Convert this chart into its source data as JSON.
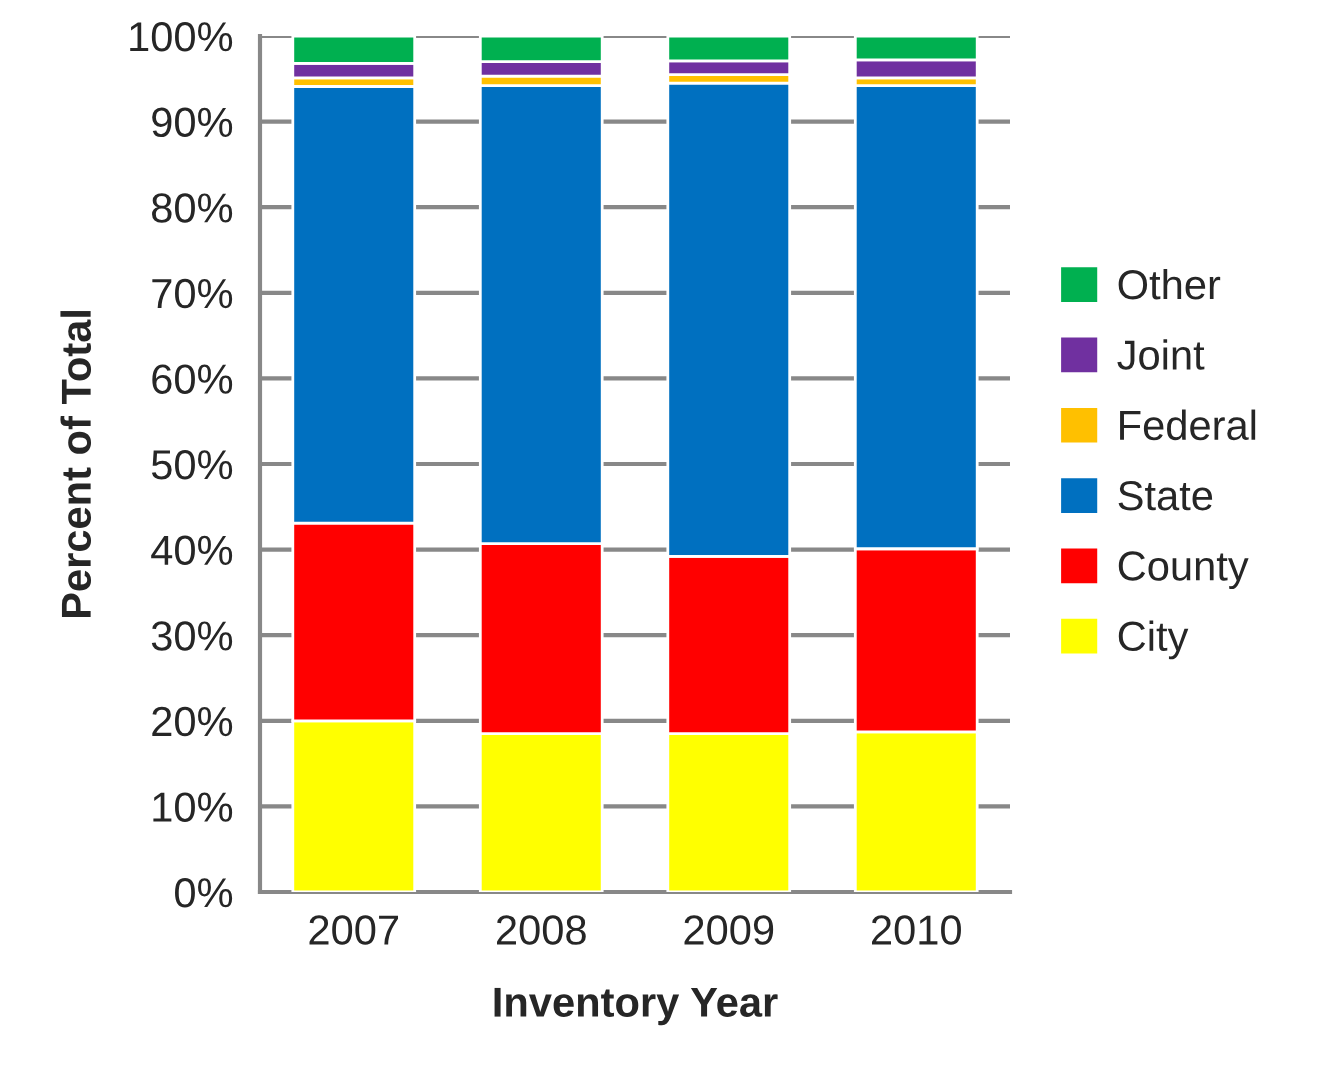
{
  "chart_data": {
    "type": "bar",
    "stacked": true,
    "xlabel": "Inventory Year",
    "ylabel": "Percent of Total",
    "categories": [
      "2007",
      "2008",
      "2009",
      "2010"
    ],
    "series": [
      {
        "name": "City",
        "color": "#ffff00",
        "values": [
          20.0,
          18.5,
          18.5,
          18.7
        ]
      },
      {
        "name": "County",
        "color": "#ff0000",
        "values": [
          23.1,
          22.2,
          20.7,
          21.4
        ]
      },
      {
        "name": "State",
        "color": "#0070c0",
        "values": [
          51.0,
          53.5,
          55.3,
          54.1
        ]
      },
      {
        "name": "Federal",
        "color": "#ffc000",
        "values": [
          1.0,
          1.1,
          1.0,
          0.9
        ]
      },
      {
        "name": "Joint",
        "color": "#7030a0",
        "values": [
          1.7,
          1.7,
          1.6,
          2.1
        ]
      },
      {
        "name": "Other",
        "color": "#00b050",
        "values": [
          3.2,
          3.0,
          2.9,
          2.8
        ]
      }
    ],
    "ylim": [
      0,
      100
    ],
    "yticks": [
      {
        "value": 0,
        "label": "0%"
      },
      {
        "value": 10,
        "label": "10%"
      },
      {
        "value": 20,
        "label": "20%"
      },
      {
        "value": 30,
        "label": "30%"
      },
      {
        "value": 40,
        "label": "40%"
      },
      {
        "value": 50,
        "label": "50%"
      },
      {
        "value": 60,
        "label": "60%"
      },
      {
        "value": 70,
        "label": "70%"
      },
      {
        "value": 80,
        "label": "80%"
      },
      {
        "value": 90,
        "label": "90%"
      },
      {
        "value": 100,
        "label": "100%"
      }
    ],
    "grid": "y",
    "legend": "right"
  }
}
